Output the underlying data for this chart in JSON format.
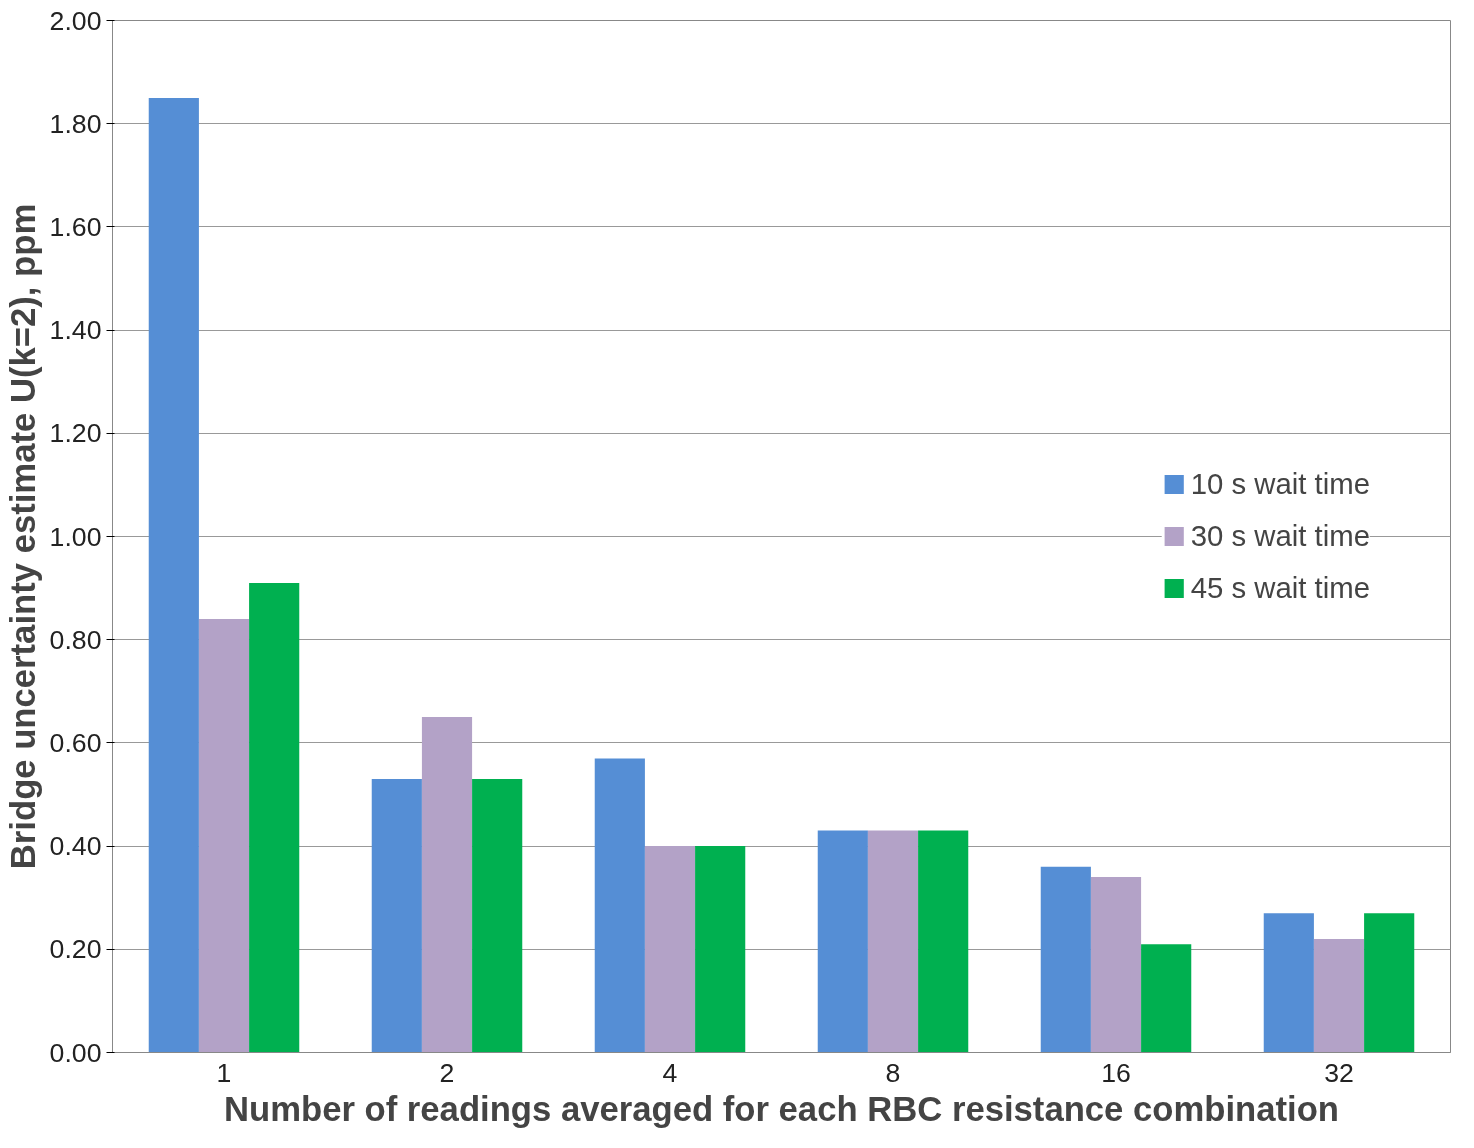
{
  "chart_data": {
    "type": "bar",
    "xlabel": "Number of readings averaged for each RBC resistance combination",
    "ylabel": "Bridge uncertainty estimate U(k=2), ppm",
    "categories": [
      "1",
      "2",
      "4",
      "8",
      "16",
      "32"
    ],
    "series": [
      {
        "name": "10 s wait time",
        "color": "#558ed5",
        "values": [
          1.85,
          0.53,
          0.57,
          0.43,
          0.36,
          0.27
        ]
      },
      {
        "name": "30 s wait time",
        "color": "#b3a2c7",
        "values": [
          0.84,
          0.65,
          0.4,
          0.43,
          0.34,
          0.22
        ]
      },
      {
        "name": "45 s wait time",
        "color": "#00b050",
        "values": [
          0.91,
          0.53,
          0.4,
          0.43,
          0.21,
          0.27
        ]
      }
    ],
    "ylim": [
      0,
      2
    ],
    "yticks": [
      {
        "value": 0,
        "label": "0.00"
      },
      {
        "value": 0.2,
        "label": "0.20"
      },
      {
        "value": 0.4,
        "label": "0.40"
      },
      {
        "value": 0.6,
        "label": "0.60"
      },
      {
        "value": 0.8,
        "label": "0.80"
      },
      {
        "value": 1.0,
        "label": "1.00"
      },
      {
        "value": 1.2,
        "label": "1.20"
      },
      {
        "value": 1.4,
        "label": "1.40"
      },
      {
        "value": 1.6,
        "label": "1.60"
      },
      {
        "value": 1.8,
        "label": "1.80"
      },
      {
        "value": 2.0,
        "label": "2.00"
      }
    ],
    "grid": "y",
    "legend": "right"
  }
}
